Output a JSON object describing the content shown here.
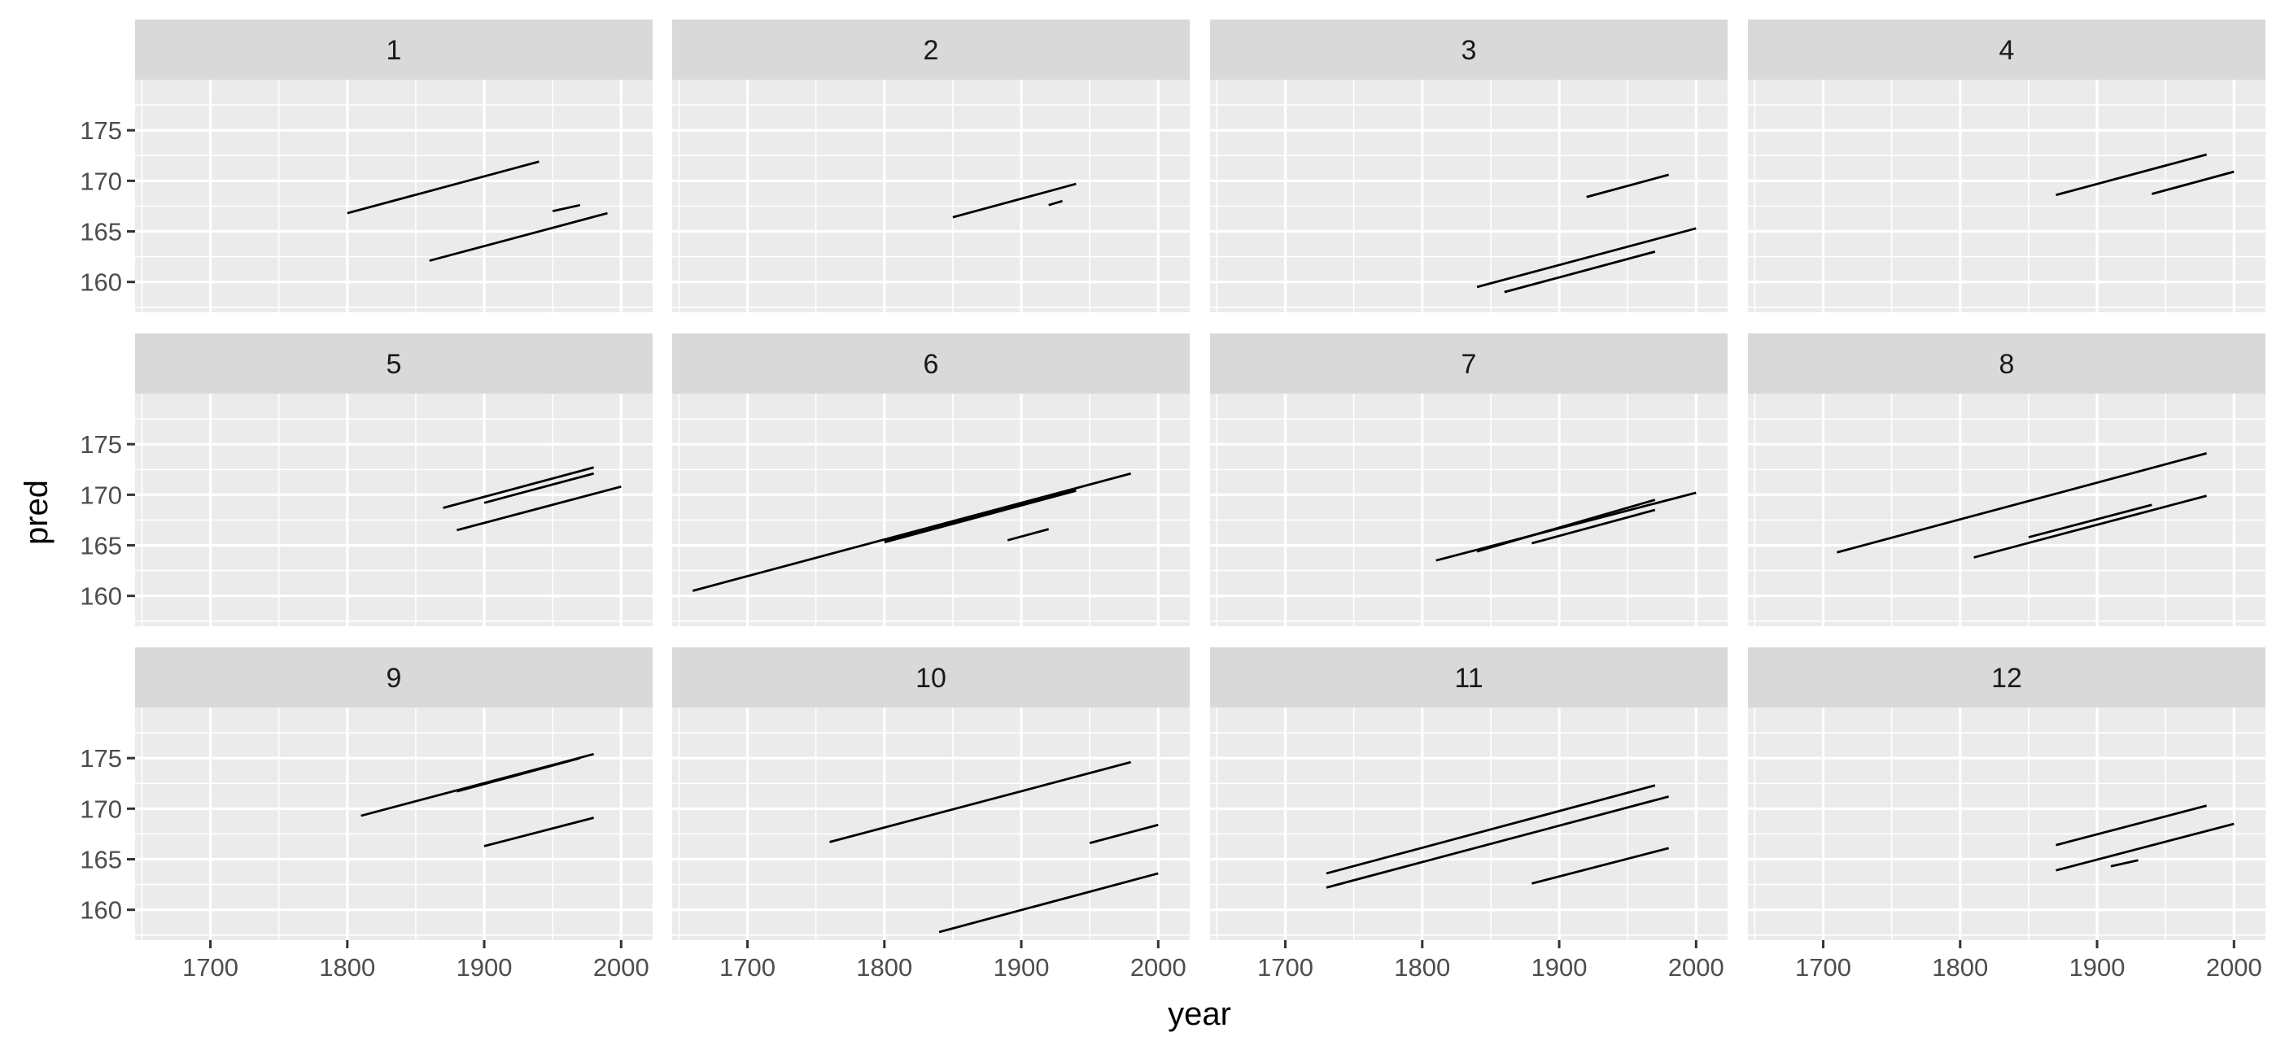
{
  "chart_data": {
    "type": "line",
    "facet_type": "wrap",
    "facet_ncol": 4,
    "xlabel": "year",
    "ylabel": "pred",
    "xlim": [
      1645,
      2023
    ],
    "ylim": [
      157,
      180
    ],
    "x_ticks": [
      1700,
      1800,
      1900,
      2000
    ],
    "x_tick_labels": [
      "1700",
      "1800",
      "1900",
      "2000"
    ],
    "y_ticks": [
      160,
      165,
      170,
      175
    ],
    "y_tick_labels": [
      "160",
      "165",
      "170",
      "175"
    ],
    "grid": true,
    "panels": [
      {
        "label": "1",
        "segments": [
          {
            "x": [
              1800,
              1940
            ],
            "y": [
              166.8,
              171.9
            ]
          },
          {
            "x": [
              1860,
              1990
            ],
            "y": [
              162.1,
              166.8
            ]
          },
          {
            "x": [
              1950,
              1970
            ],
            "y": [
              167.0,
              167.6
            ]
          }
        ]
      },
      {
        "label": "2",
        "segments": [
          {
            "x": [
              1850,
              1940
            ],
            "y": [
              166.4,
              169.7
            ]
          },
          {
            "x": [
              1920,
              1930
            ],
            "y": [
              167.6,
              168.0
            ]
          }
        ]
      },
      {
        "label": "3",
        "segments": [
          {
            "x": [
              1920,
              1980
            ],
            "y": [
              168.4,
              170.6
            ]
          },
          {
            "x": [
              1840,
              2000
            ],
            "y": [
              159.5,
              165.3
            ]
          },
          {
            "x": [
              1860,
              1970
            ],
            "y": [
              159.0,
              163.0
            ]
          }
        ]
      },
      {
        "label": "4",
        "segments": [
          {
            "x": [
              1870,
              1980
            ],
            "y": [
              168.6,
              172.6
            ]
          },
          {
            "x": [
              1940,
              2000
            ],
            "y": [
              168.7,
              170.9
            ]
          }
        ]
      },
      {
        "label": "5",
        "segments": [
          {
            "x": [
              1870,
              1980
            ],
            "y": [
              168.7,
              172.7
            ]
          },
          {
            "x": [
              1900,
              1980
            ],
            "y": [
              169.2,
              172.1
            ]
          },
          {
            "x": [
              1880,
              2000
            ],
            "y": [
              166.5,
              170.8
            ]
          }
        ]
      },
      {
        "label": "6",
        "segments": [
          {
            "x": [
              1660,
              1980
            ],
            "y": [
              160.5,
              172.1
            ]
          },
          {
            "x": [
              1800,
              1940
            ],
            "y": [
              165.5,
              170.6
            ]
          },
          {
            "x": [
              1800,
              1940
            ],
            "y": [
              165.3,
              170.4
            ]
          },
          {
            "x": [
              1890,
              1920
            ],
            "y": [
              165.5,
              166.6
            ]
          }
        ]
      },
      {
        "label": "7",
        "segments": [
          {
            "x": [
              1810,
              2000
            ],
            "y": [
              163.5,
              170.2
            ]
          },
          {
            "x": [
              1840,
              1970
            ],
            "y": [
              164.4,
              169.5
            ]
          },
          {
            "x": [
              1880,
              1970
            ],
            "y": [
              165.2,
              168.5
            ]
          }
        ]
      },
      {
        "label": "8",
        "segments": [
          {
            "x": [
              1710,
              1980
            ],
            "y": [
              164.3,
              174.1
            ]
          },
          {
            "x": [
              1850,
              1940
            ],
            "y": [
              165.8,
              169.0
            ]
          },
          {
            "x": [
              1810,
              1980
            ],
            "y": [
              163.8,
              169.9
            ]
          }
        ]
      },
      {
        "label": "9",
        "segments": [
          {
            "x": [
              1810,
              1980
            ],
            "y": [
              169.3,
              175.4
            ]
          },
          {
            "x": [
              1880,
              1970
            ],
            "y": [
              171.7,
              175.0
            ]
          },
          {
            "x": [
              1900,
              1980
            ],
            "y": [
              166.3,
              169.1
            ]
          }
        ]
      },
      {
        "label": "10",
        "segments": [
          {
            "x": [
              1760,
              1980
            ],
            "y": [
              166.7,
              174.6
            ]
          },
          {
            "x": [
              1950,
              2000
            ],
            "y": [
              166.6,
              168.4
            ]
          },
          {
            "x": [
              1840,
              2000
            ],
            "y": [
              157.8,
              163.6
            ]
          }
        ]
      },
      {
        "label": "11",
        "segments": [
          {
            "x": [
              1730,
              1970
            ],
            "y": [
              163.6,
              172.3
            ]
          },
          {
            "x": [
              1730,
              1980
            ],
            "y": [
              162.2,
              171.2
            ]
          },
          {
            "x": [
              1880,
              1980
            ],
            "y": [
              162.6,
              166.1
            ]
          }
        ]
      },
      {
        "label": "12",
        "segments": [
          {
            "x": [
              1870,
              1980
            ],
            "y": [
              166.4,
              170.3
            ]
          },
          {
            "x": [
              1870,
              2000
            ],
            "y": [
              163.9,
              168.5
            ]
          },
          {
            "x": [
              1910,
              1930
            ],
            "y": [
              164.3,
              164.9
            ]
          }
        ]
      }
    ]
  }
}
